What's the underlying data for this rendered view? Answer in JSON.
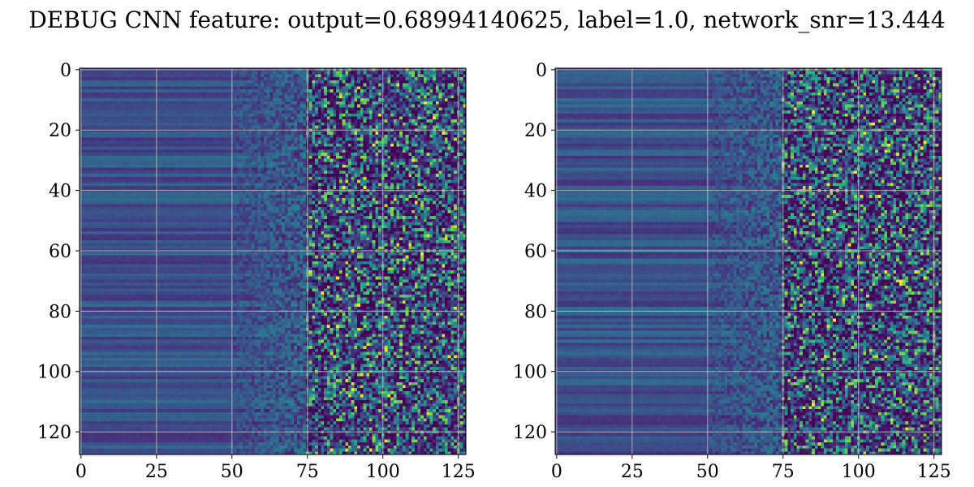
{
  "title": "DEBUG CNN feature: output=0.68994140625, label=1.0, network_snr=13.444",
  "chart_data": [
    {
      "type": "heatmap",
      "colormap": "viridis",
      "rows": 128,
      "cols": 128,
      "xlim": [
        -0.5,
        127.5
      ],
      "ylim": [
        127.5,
        -0.5
      ],
      "x_ticks": [
        0,
        25,
        50,
        75,
        100,
        125
      ],
      "y_ticks": [
        0,
        20,
        40,
        60,
        80,
        100,
        120
      ],
      "grid": true,
      "values_description_hidden": true
    },
    {
      "type": "heatmap",
      "colormap": "viridis",
      "rows": 128,
      "cols": 128,
      "xlim": [
        -0.5,
        127.5
      ],
      "ylim": [
        127.5,
        -0.5
      ],
      "x_ticks": [
        0,
        25,
        50,
        75,
        100,
        125
      ],
      "y_ticks": [
        0,
        20,
        40,
        60,
        80,
        100,
        120
      ],
      "grid": true
    }
  ],
  "colors": {
    "grid": "#b0b0b0",
    "viridis": [
      "#440154",
      "#482878",
      "#3e4989",
      "#31688e",
      "#26828e",
      "#1f9e89",
      "#35b779",
      "#6ece58",
      "#b5de2b",
      "#fde725"
    ]
  }
}
